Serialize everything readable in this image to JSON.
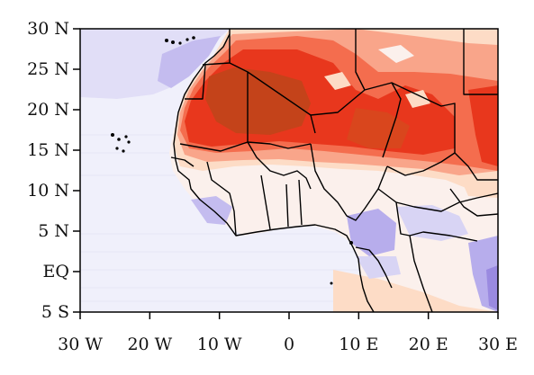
{
  "map": {
    "lon_range": [
      -30,
      30
    ],
    "lat_range": [
      -5,
      30
    ],
    "y_ticks": [
      {
        "value": 30,
        "label": "30 N"
      },
      {
        "value": 25,
        "label": "25 N"
      },
      {
        "value": 20,
        "label": "20 N"
      },
      {
        "value": 15,
        "label": "15 N"
      },
      {
        "value": 10,
        "label": "10 N"
      },
      {
        "value": 5,
        "label": "5 N"
      },
      {
        "value": 0,
        "label": "EQ"
      },
      {
        "value": -5,
        "label": "5 S"
      }
    ],
    "x_ticks": [
      {
        "value": -30,
        "label": "30 W"
      },
      {
        "value": -20,
        "label": "20 W"
      },
      {
        "value": -10,
        "label": "10 W"
      },
      {
        "value": 0,
        "label": "0"
      },
      {
        "value": 10,
        "label": "10 E"
      },
      {
        "value": 20,
        "label": "20 E"
      },
      {
        "value": 30,
        "label": "30 E"
      }
    ],
    "colors": {
      "ocean": "#f0f0fb",
      "light_purple": "#d8d4f4",
      "purple": "#b7adec",
      "dark_purple": "#9a8ae0",
      "peach": "#fddcc6",
      "salmon": "#f9a58a",
      "light_red": "#f46d4e",
      "red": "#e8371d",
      "dark_red": "#c4431a",
      "border": "#000000"
    }
  }
}
